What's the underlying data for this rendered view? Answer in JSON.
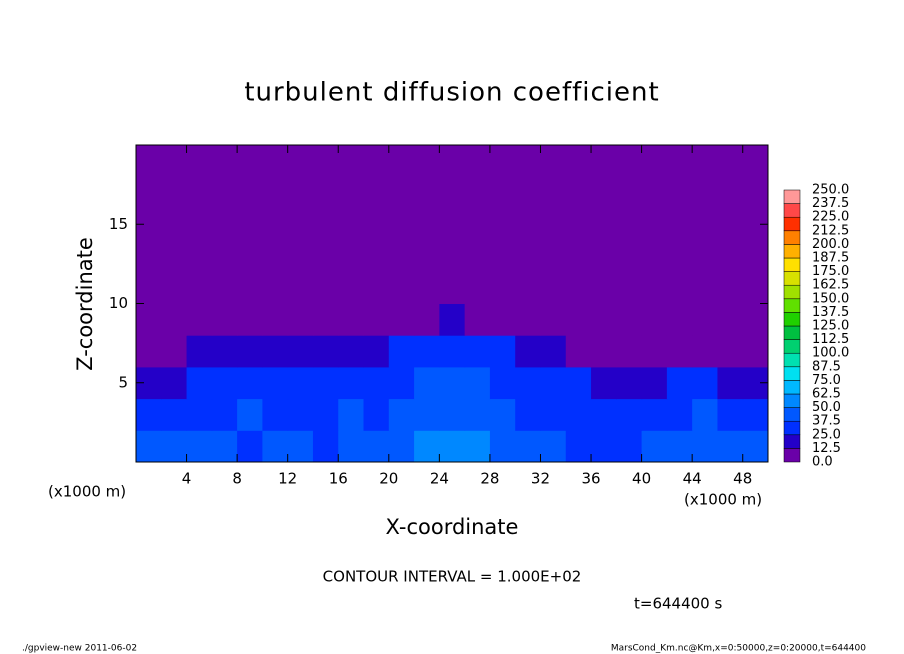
{
  "chart_data": {
    "type": "heatmap",
    "title": "turbulent diffusion coefficient",
    "xlabel": "X-coordinate",
    "ylabel": "Z-coordinate",
    "xunit": "(x1000 m)",
    "xlim": [
      0,
      50
    ],
    "ylim": [
      0,
      20
    ],
    "xticks": [
      4,
      8,
      12,
      16,
      20,
      24,
      28,
      32,
      36,
      40,
      44,
      48
    ],
    "yticks": [
      5,
      10,
      15
    ],
    "xbins": [
      0,
      2,
      4,
      6,
      8,
      10,
      12,
      14,
      16,
      18,
      20,
      22,
      24,
      26,
      28,
      30,
      32,
      34,
      36,
      38,
      40,
      42,
      44,
      46,
      48,
      50
    ],
    "zbins": [
      0,
      2,
      4,
      6,
      8,
      10,
      20
    ],
    "field": [
      [
        40,
        38,
        42,
        38,
        36,
        40,
        38,
        36,
        42,
        40,
        48,
        52,
        55,
        50,
        45,
        40,
        38,
        36,
        34,
        36,
        38,
        40,
        42,
        40,
        38
      ],
      [
        30,
        28,
        32,
        35,
        38,
        32,
        30,
        34,
        38,
        36,
        42,
        46,
        48,
        44,
        40,
        35,
        32,
        30,
        28,
        30,
        34,
        36,
        38,
        34,
        30
      ],
      [
        22,
        24,
        26,
        28,
        32,
        30,
        28,
        30,
        34,
        32,
        36,
        40,
        42,
        38,
        34,
        30,
        28,
        26,
        22,
        18,
        24,
        26,
        28,
        24,
        20
      ],
      [
        10,
        12,
        14,
        20,
        22,
        22,
        22,
        22,
        24,
        24,
        26,
        28,
        30,
        28,
        26,
        24,
        22,
        8,
        4,
        2,
        4,
        6,
        6,
        4,
        2
      ],
      [
        0,
        0,
        0,
        0,
        0,
        0,
        0,
        0,
        0,
        0,
        8,
        12,
        14,
        12,
        6,
        0,
        0,
        0,
        0,
        0,
        0,
        0,
        0,
        0,
        0
      ],
      [
        0,
        0,
        0,
        0,
        0,
        0,
        0,
        0,
        0,
        0,
        0,
        0,
        0,
        0,
        0,
        0,
        0,
        0,
        0,
        0,
        0,
        0,
        0,
        0,
        0
      ]
    ],
    "levels": [
      {
        "value": 0,
        "label": "0.0"
      },
      {
        "value": 12.5,
        "label": "12.5"
      },
      {
        "value": 25,
        "label": "25.0"
      },
      {
        "value": 37.5,
        "label": "37.5"
      },
      {
        "value": 50,
        "label": "50.0"
      },
      {
        "value": 62.5,
        "label": "62.5"
      },
      {
        "value": 75,
        "label": "75.0"
      },
      {
        "value": 87.5,
        "label": "87.5"
      },
      {
        "value": 100,
        "label": "100.0"
      },
      {
        "value": 112.5,
        "label": "112.5"
      },
      {
        "value": 125,
        "label": "125.0"
      },
      {
        "value": 137.5,
        "label": "137.5"
      },
      {
        "value": 150,
        "label": "150.0"
      },
      {
        "value": 162.5,
        "label": "162.5"
      },
      {
        "value": 175,
        "label": "175.0"
      },
      {
        "value": 187.5,
        "label": "187.5"
      },
      {
        "value": 200,
        "label": "200.0"
      },
      {
        "value": 212.5,
        "label": "212.5"
      },
      {
        "value": 225,
        "label": "225.0"
      },
      {
        "value": 237.5,
        "label": "237.5"
      },
      {
        "value": 250,
        "label": "250.0"
      }
    ],
    "colors": [
      "#6a00a8",
      "#2400c8",
      "#0030ff",
      "#0058ff",
      "#0088ff",
      "#00b8ff",
      "#00e0f0",
      "#00e0b0",
      "#00d070",
      "#00c040",
      "#20d000",
      "#60e000",
      "#a0e000",
      "#d8e000",
      "#ffe000",
      "#ffb000",
      "#ff8000",
      "#ff3000",
      "#ff4848",
      "#ff9898"
    ],
    "contour_note": "CONTOUR INTERVAL = 1.000E+02",
    "time_label": "t=644400 s",
    "footer_left": "./gpview-new   2011-06-02",
    "footer_right": "MarsCond_Km.nc@Km,x=0:50000,z=0:20000,t=644400"
  }
}
